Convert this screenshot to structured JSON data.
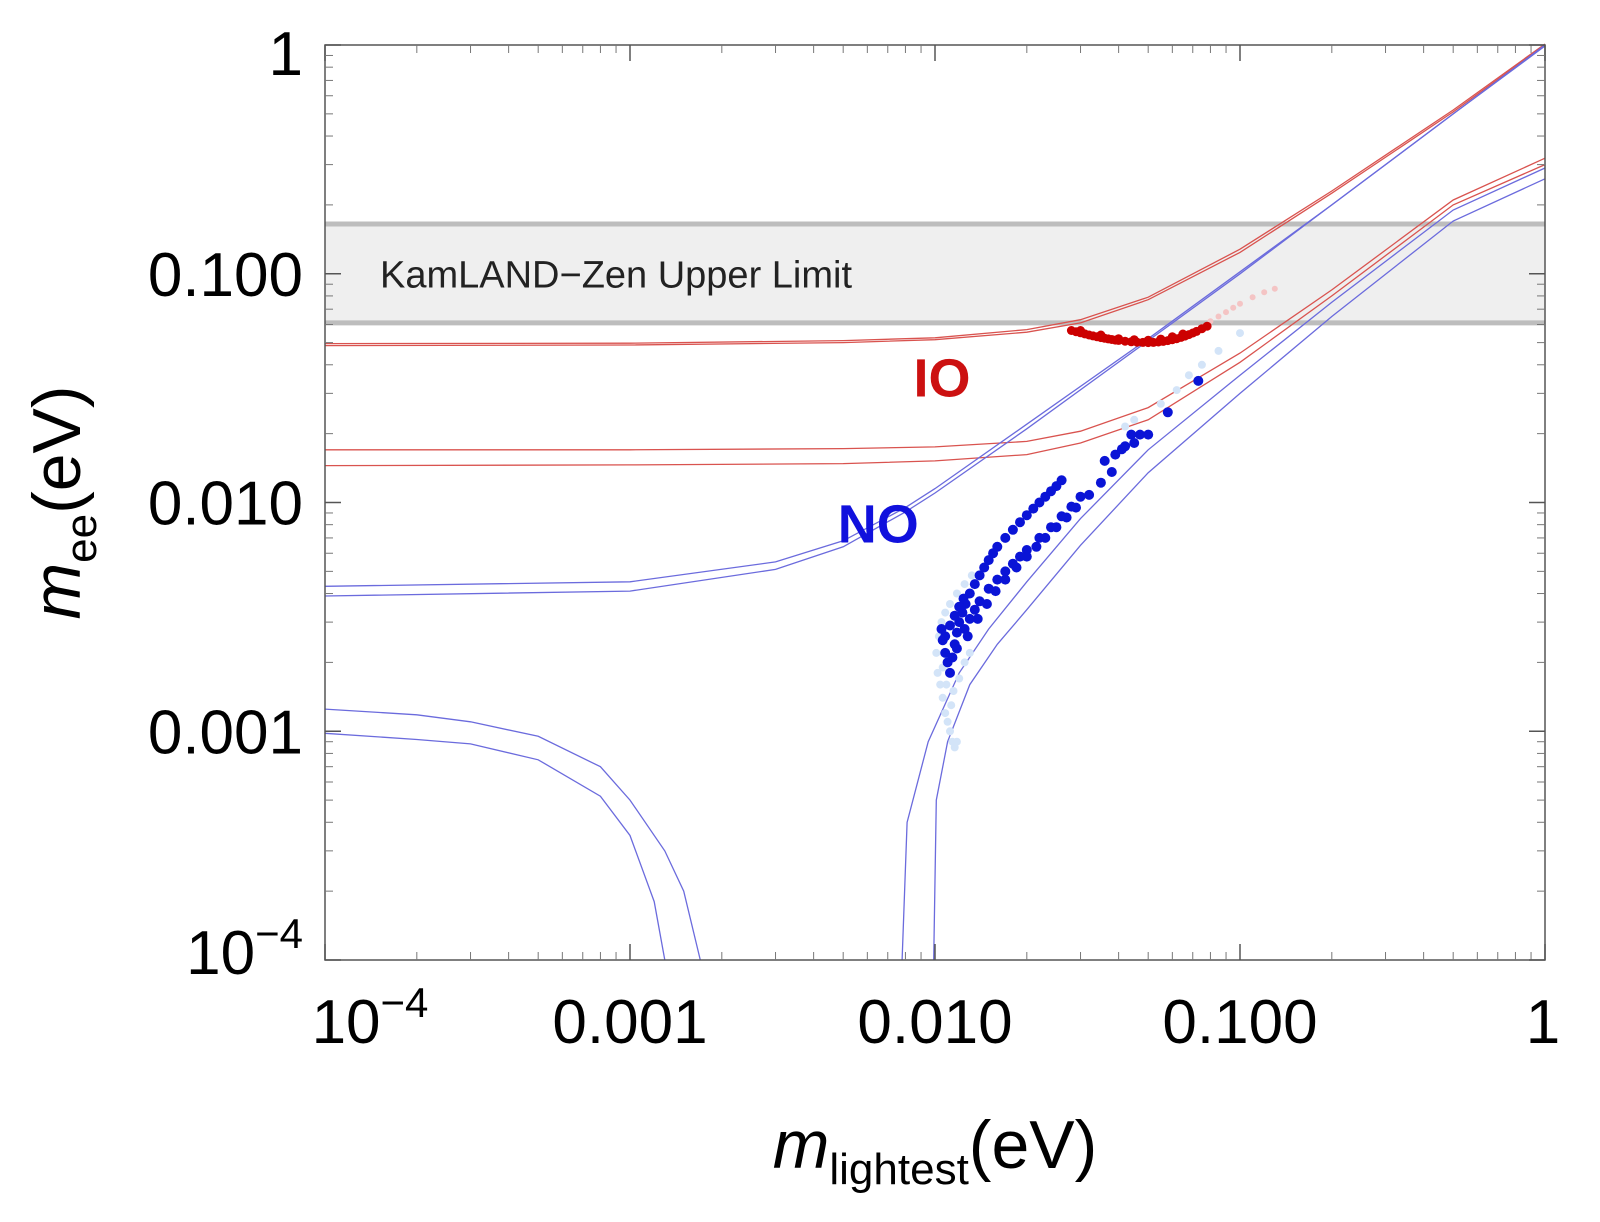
{
  "chart_data": {
    "type": "scatter",
    "x_scale": "log",
    "y_scale": "log",
    "xlim": [
      0.0001,
      1
    ],
    "ylim": [
      0.0001,
      1
    ],
    "grid": false,
    "xlabel": {
      "main": "m",
      "sub": "lightest",
      "unit": "(eV)"
    },
    "ylabel": {
      "main": "m",
      "sub": "ee",
      "unit": "(eV)"
    },
    "x_ticks": [
      {
        "value": 0.0001,
        "base": "10",
        "exp": "−4"
      },
      {
        "value": 0.001,
        "label": "0.001"
      },
      {
        "value": 0.01,
        "label": "0.010"
      },
      {
        "value": 0.1,
        "label": "0.100"
      },
      {
        "value": 1,
        "label": "1"
      }
    ],
    "y_ticks": [
      {
        "value": 0.0001,
        "base": "10",
        "exp": "−4"
      },
      {
        "value": 0.001,
        "label": "0.001"
      },
      {
        "value": 0.01,
        "label": "0.010"
      },
      {
        "value": 0.1,
        "label": "0.100"
      },
      {
        "value": 1,
        "label": "1"
      }
    ],
    "band": {
      "label": "KamLAND−Zen Upper Limit",
      "y_low": 0.061,
      "y_high": 0.165,
      "fill": "#efefef",
      "edge": "#bdbdbd"
    },
    "region_labels": [
      {
        "text": "IO",
        "x": 0.0085,
        "y": 0.029,
        "color": "#cc1111"
      },
      {
        "text": "NO",
        "x": 0.0048,
        "y": 0.0067,
        "color": "#1111dd"
      }
    ],
    "curves": [
      {
        "name": "IO-upper-1",
        "color": "#d9534f",
        "points": [
          [
            0.0001,
            0.0495
          ],
          [
            0.001,
            0.0497
          ],
          [
            0.005,
            0.051
          ],
          [
            0.01,
            0.0525
          ],
          [
            0.02,
            0.057
          ],
          [
            0.03,
            0.063
          ],
          [
            0.05,
            0.079
          ],
          [
            0.1,
            0.128
          ],
          [
            0.2,
            0.23
          ],
          [
            0.5,
            0.52
          ],
          [
            1,
            1.01
          ]
        ]
      },
      {
        "name": "IO-upper-2",
        "color": "#d9534f",
        "points": [
          [
            0.0001,
            0.0485
          ],
          [
            0.001,
            0.0488
          ],
          [
            0.005,
            0.05
          ],
          [
            0.01,
            0.0515
          ],
          [
            0.02,
            0.0555
          ],
          [
            0.03,
            0.061
          ],
          [
            0.05,
            0.077
          ],
          [
            0.1,
            0.124
          ],
          [
            0.2,
            0.225
          ],
          [
            0.5,
            0.51
          ],
          [
            1,
            1.0
          ]
        ]
      },
      {
        "name": "IO-lower-1",
        "color": "#d9534f",
        "points": [
          [
            0.0001,
            0.017
          ],
          [
            0.001,
            0.017
          ],
          [
            0.005,
            0.0172
          ],
          [
            0.01,
            0.0175
          ],
          [
            0.02,
            0.0185
          ],
          [
            0.03,
            0.0205
          ],
          [
            0.05,
            0.026
          ],
          [
            0.1,
            0.045
          ],
          [
            0.2,
            0.085
          ],
          [
            0.5,
            0.21
          ],
          [
            1,
            0.32
          ]
        ]
      },
      {
        "name": "IO-lower-2",
        "color": "#d9534f",
        "points": [
          [
            0.0001,
            0.0145
          ],
          [
            0.001,
            0.0146
          ],
          [
            0.005,
            0.0148
          ],
          [
            0.01,
            0.0152
          ],
          [
            0.02,
            0.0162
          ],
          [
            0.03,
            0.0182
          ],
          [
            0.05,
            0.023
          ],
          [
            0.1,
            0.041
          ],
          [
            0.2,
            0.08
          ],
          [
            0.5,
            0.2
          ],
          [
            1,
            0.3
          ]
        ]
      },
      {
        "name": "NO-upper-1",
        "color": "#6b6bdd",
        "points": [
          [
            0.0001,
            0.0043
          ],
          [
            0.001,
            0.0045
          ],
          [
            0.003,
            0.0055
          ],
          [
            0.005,
            0.0068
          ],
          [
            0.008,
            0.0095
          ],
          [
            0.01,
            0.0115
          ],
          [
            0.02,
            0.022
          ],
          [
            0.05,
            0.052
          ],
          [
            0.1,
            0.102
          ],
          [
            0.2,
            0.2
          ],
          [
            0.5,
            0.5
          ],
          [
            1,
            1.0
          ]
        ]
      },
      {
        "name": "NO-upper-2",
        "color": "#6b6bdd",
        "points": [
          [
            0.0001,
            0.0039
          ],
          [
            0.001,
            0.0041
          ],
          [
            0.003,
            0.0051
          ],
          [
            0.005,
            0.0064
          ],
          [
            0.008,
            0.0091
          ],
          [
            0.01,
            0.011
          ],
          [
            0.02,
            0.021
          ],
          [
            0.05,
            0.051
          ],
          [
            0.1,
            0.1
          ],
          [
            0.2,
            0.2
          ],
          [
            0.5,
            0.5
          ],
          [
            1,
            0.99
          ]
        ]
      },
      {
        "name": "NO-lower-right-1",
        "color": "#6b6bdd",
        "points": [
          [
            0.0078,
            0.0001
          ],
          [
            0.0081,
            0.0004
          ],
          [
            0.0095,
            0.0009
          ],
          [
            0.012,
            0.0018
          ],
          [
            0.015,
            0.0028
          ],
          [
            0.02,
            0.0045
          ],
          [
            0.03,
            0.0085
          ],
          [
            0.05,
            0.017
          ],
          [
            0.1,
            0.036
          ],
          [
            0.2,
            0.075
          ],
          [
            0.5,
            0.19
          ],
          [
            1,
            0.29
          ]
        ]
      },
      {
        "name": "NO-lower-right-2",
        "color": "#6b6bdd",
        "points": [
          [
            0.0099,
            0.0001
          ],
          [
            0.0101,
            0.0005
          ],
          [
            0.011,
            0.0009
          ],
          [
            0.013,
            0.0016
          ],
          [
            0.016,
            0.0024
          ],
          [
            0.02,
            0.0034
          ],
          [
            0.03,
            0.0065
          ],
          [
            0.05,
            0.0135
          ],
          [
            0.1,
            0.03
          ],
          [
            0.2,
            0.065
          ],
          [
            0.5,
            0.17
          ],
          [
            1,
            0.26
          ]
        ]
      },
      {
        "name": "NO-lower-left-outer",
        "color": "#6b6bdd",
        "points": [
          [
            0.0001,
            0.00125
          ],
          [
            0.0002,
            0.00118
          ],
          [
            0.0003,
            0.0011
          ],
          [
            0.0005,
            0.00095
          ],
          [
            0.0008,
            0.0007
          ],
          [
            0.001,
            0.0005
          ],
          [
            0.0013,
            0.0003
          ],
          [
            0.0015,
            0.0002
          ],
          [
            0.0017,
            0.0001
          ]
        ]
      },
      {
        "name": "NO-lower-left-inner",
        "color": "#6b6bdd",
        "points": [
          [
            0.0001,
            0.00098
          ],
          [
            0.0002,
            0.00092
          ],
          [
            0.0003,
            0.00088
          ],
          [
            0.0005,
            0.00075
          ],
          [
            0.0008,
            0.00052
          ],
          [
            0.001,
            0.00035
          ],
          [
            0.0012,
            0.00018
          ],
          [
            0.0013,
            0.0001
          ]
        ]
      }
    ],
    "series": [
      {
        "name": "IO-points",
        "color": "#cc0000",
        "radius": 4.5,
        "points": [
          [
            0.028,
            0.0565
          ],
          [
            0.029,
            0.0558
          ],
          [
            0.03,
            0.0552
          ],
          [
            0.031,
            0.0546
          ],
          [
            0.032,
            0.054
          ],
          [
            0.033,
            0.0535
          ],
          [
            0.034,
            0.053
          ],
          [
            0.035,
            0.0526
          ],
          [
            0.036,
            0.0522
          ],
          [
            0.037,
            0.0519
          ],
          [
            0.038,
            0.0516
          ],
          [
            0.039,
            0.0513
          ],
          [
            0.04,
            0.0511
          ],
          [
            0.042,
            0.0507
          ],
          [
            0.044,
            0.0504
          ],
          [
            0.046,
            0.0502
          ],
          [
            0.048,
            0.0501
          ],
          [
            0.05,
            0.05
          ],
          [
            0.052,
            0.0501
          ],
          [
            0.054,
            0.0503
          ],
          [
            0.056,
            0.0506
          ],
          [
            0.058,
            0.051
          ],
          [
            0.06,
            0.0515
          ],
          [
            0.062,
            0.052
          ],
          [
            0.064,
            0.0527
          ],
          [
            0.066,
            0.0534
          ],
          [
            0.068,
            0.0542
          ],
          [
            0.07,
            0.0551
          ],
          [
            0.072,
            0.056
          ],
          [
            0.075,
            0.0575
          ],
          [
            0.078,
            0.059
          ],
          [
            0.03,
            0.0565
          ],
          [
            0.035,
            0.054
          ],
          [
            0.04,
            0.052
          ],
          [
            0.045,
            0.0515
          ],
          [
            0.05,
            0.0512
          ],
          [
            0.055,
            0.0518
          ],
          [
            0.06,
            0.053
          ],
          [
            0.065,
            0.0545
          ]
        ]
      },
      {
        "name": "IO-faint",
        "color": "#f4c4c4",
        "radius": 3,
        "points": [
          [
            0.08,
            0.062
          ],
          [
            0.085,
            0.065
          ],
          [
            0.09,
            0.068
          ],
          [
            0.095,
            0.071
          ],
          [
            0.1,
            0.074
          ],
          [
            0.11,
            0.079
          ],
          [
            0.12,
            0.083
          ],
          [
            0.13,
            0.086
          ]
        ]
      },
      {
        "name": "NO-points",
        "color": "#0a14d6",
        "radius": 5,
        "points": [
          [
            0.0105,
            0.0028
          ],
          [
            0.0106,
            0.0025
          ],
          [
            0.0108,
            0.0022
          ],
          [
            0.011,
            0.002
          ],
          [
            0.0112,
            0.0018
          ],
          [
            0.0114,
            0.0021
          ],
          [
            0.0116,
            0.0024
          ],
          [
            0.0118,
            0.0027
          ],
          [
            0.012,
            0.003
          ],
          [
            0.0123,
            0.0033
          ],
          [
            0.0126,
            0.0036
          ],
          [
            0.013,
            0.004
          ],
          [
            0.0135,
            0.0044
          ],
          [
            0.014,
            0.0048
          ],
          [
            0.0145,
            0.0052
          ],
          [
            0.015,
            0.0056
          ],
          [
            0.0155,
            0.006
          ],
          [
            0.016,
            0.0064
          ],
          [
            0.017,
            0.007
          ],
          [
            0.018,
            0.0076
          ],
          [
            0.019,
            0.0082
          ],
          [
            0.02,
            0.0088
          ],
          [
            0.021,
            0.0094
          ],
          [
            0.022,
            0.01
          ],
          [
            0.023,
            0.0106
          ],
          [
            0.024,
            0.0112
          ],
          [
            0.025,
            0.0118
          ],
          [
            0.026,
            0.0125
          ],
          [
            0.0125,
            0.0028
          ],
          [
            0.013,
            0.0031
          ],
          [
            0.0135,
            0.0034
          ],
          [
            0.014,
            0.0037
          ],
          [
            0.015,
            0.0042
          ],
          [
            0.016,
            0.0046
          ],
          [
            0.017,
            0.005
          ],
          [
            0.018,
            0.0054
          ],
          [
            0.019,
            0.0058
          ],
          [
            0.02,
            0.0062
          ],
          [
            0.022,
            0.007
          ],
          [
            0.024,
            0.0078
          ],
          [
            0.026,
            0.0087
          ],
          [
            0.028,
            0.0096
          ],
          [
            0.03,
            0.0106
          ],
          [
            0.0118,
            0.0023
          ],
          [
            0.0128,
            0.0026
          ],
          [
            0.0138,
            0.0031
          ],
          [
            0.0148,
            0.0036
          ],
          [
            0.0158,
            0.0041
          ],
          [
            0.017,
            0.0046
          ],
          [
            0.0185,
            0.0052
          ],
          [
            0.02,
            0.0058
          ],
          [
            0.0215,
            0.0064
          ],
          [
            0.023,
            0.007
          ],
          [
            0.025,
            0.0078
          ],
          [
            0.027,
            0.0086
          ],
          [
            0.029,
            0.0095
          ],
          [
            0.032,
            0.0108
          ],
          [
            0.035,
            0.0122
          ],
          [
            0.038,
            0.0136
          ],
          [
            0.036,
            0.0152
          ],
          [
            0.039,
            0.0162
          ],
          [
            0.042,
            0.0176
          ],
          [
            0.044,
            0.0198
          ],
          [
            0.047,
            0.0198
          ],
          [
            0.045,
            0.0182
          ],
          [
            0.041,
            0.0171
          ],
          [
            0.05,
            0.0198
          ],
          [
            0.058,
            0.0248
          ],
          [
            0.073,
            0.034
          ],
          [
            0.0108,
            0.0026
          ],
          [
            0.0112,
            0.0029
          ],
          [
            0.0116,
            0.0032
          ],
          [
            0.012,
            0.0035
          ],
          [
            0.0124,
            0.0038
          ]
        ]
      },
      {
        "name": "NO-faint",
        "color": "#d3e4f8",
        "radius": 4,
        "points": [
          [
            0.0102,
            0.0018
          ],
          [
            0.0104,
            0.0016
          ],
          [
            0.0106,
            0.0014
          ],
          [
            0.0108,
            0.0012
          ],
          [
            0.011,
            0.0011
          ],
          [
            0.0112,
            0.001
          ],
          [
            0.0114,
            0.0009
          ],
          [
            0.0116,
            0.00085
          ],
          [
            0.0118,
            0.0009
          ],
          [
            0.0101,
            0.0022
          ],
          [
            0.0103,
            0.0026
          ],
          [
            0.0105,
            0.003
          ],
          [
            0.0108,
            0.0033
          ],
          [
            0.0112,
            0.0036
          ],
          [
            0.0118,
            0.004
          ],
          [
            0.0125,
            0.0044
          ],
          [
            0.0132,
            0.0048
          ],
          [
            0.0115,
            0.0015
          ],
          [
            0.012,
            0.0017
          ],
          [
            0.0125,
            0.002
          ],
          [
            0.013,
            0.0022
          ],
          [
            0.0106,
            0.0019
          ],
          [
            0.0109,
            0.0016
          ],
          [
            0.0113,
            0.0013
          ],
          [
            0.042,
            0.0215
          ],
          [
            0.045,
            0.023
          ],
          [
            0.055,
            0.027
          ],
          [
            0.062,
            0.031
          ],
          [
            0.068,
            0.036
          ],
          [
            0.075,
            0.04
          ],
          [
            0.085,
            0.046
          ],
          [
            0.1,
            0.055
          ]
        ]
      }
    ]
  }
}
